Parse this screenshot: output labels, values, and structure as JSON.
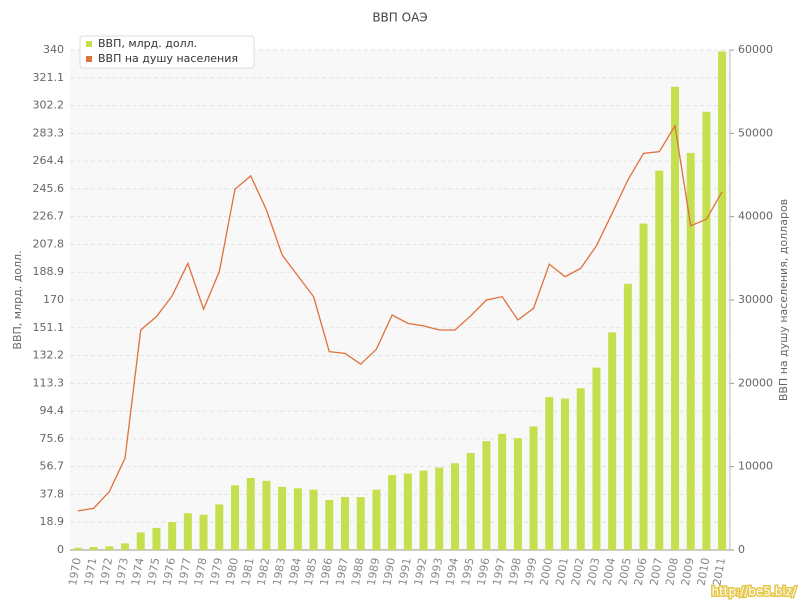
{
  "chart_data": {
    "type": "bar",
    "title": "ВВП ОАЭ",
    "y_label": "ВВП, млрд. долл.",
    "y2_label": "ВВП на душу населения, долларов",
    "watermark": "http://be5.biz/",
    "categories": [
      "1970",
      "1971",
      "1972",
      "1973",
      "1974",
      "1975",
      "1976",
      "1977",
      "1978",
      "1979",
      "1980",
      "1981",
      "1982",
      "1983",
      "1984",
      "1985",
      "1986",
      "1987",
      "1988",
      "1989",
      "1990",
      "1991",
      "1992",
      "1993",
      "1994",
      "1995",
      "1996",
      "1997",
      "1998",
      "1999",
      "2000",
      "2001",
      "2002",
      "2003",
      "2004",
      "2005",
      "2006",
      "2007",
      "2008",
      "2009",
      "2010",
      "2011"
    ],
    "series": [
      {
        "name": "ВВП, млрд. долл.",
        "type": "bar",
        "color": "#c4e04e",
        "values": [
          1.5,
          2,
          2.5,
          4.5,
          12,
          15,
          19,
          25,
          24,
          31,
          44,
          49,
          47,
          43,
          42,
          41,
          34,
          36,
          36,
          41,
          51,
          52,
          54,
          56,
          59,
          66,
          74,
          79,
          76,
          84,
          104,
          103,
          110,
          124,
          148,
          181,
          222,
          258,
          315,
          270,
          298,
          339
        ]
      },
      {
        "name": "ВВП на душу населения",
        "type": "line",
        "axis": "y2",
        "color": "#e0703c",
        "values": [
          4700,
          5000,
          7000,
          11000,
          26400,
          28000,
          30500,
          34400,
          28900,
          33400,
          43300,
          44900,
          40800,
          35400,
          32900,
          30400,
          23800,
          23600,
          22300,
          24100,
          28200,
          27200,
          26900,
          26400,
          26400,
          28100,
          30000,
          30400,
          27600,
          29000,
          34300,
          32800,
          33800,
          36500,
          40400,
          44400,
          47600,
          47800,
          50900,
          38900,
          39700,
          43000
        ]
      }
    ],
    "ylim": [
      0,
      340
    ],
    "yticks": [
      0,
      18.9,
      37.8,
      56.7,
      75.6,
      94.4,
      113.3,
      132.2,
      151.1,
      170,
      188.9,
      207.8,
      226.7,
      245.6,
      264.4,
      283.3,
      302.2,
      321.1,
      340
    ],
    "y2lim": [
      0,
      60000
    ],
    "y2ticks": [
      0,
      10000,
      20000,
      30000,
      40000,
      50000,
      60000
    ],
    "grid": true,
    "legend": "top-left"
  }
}
